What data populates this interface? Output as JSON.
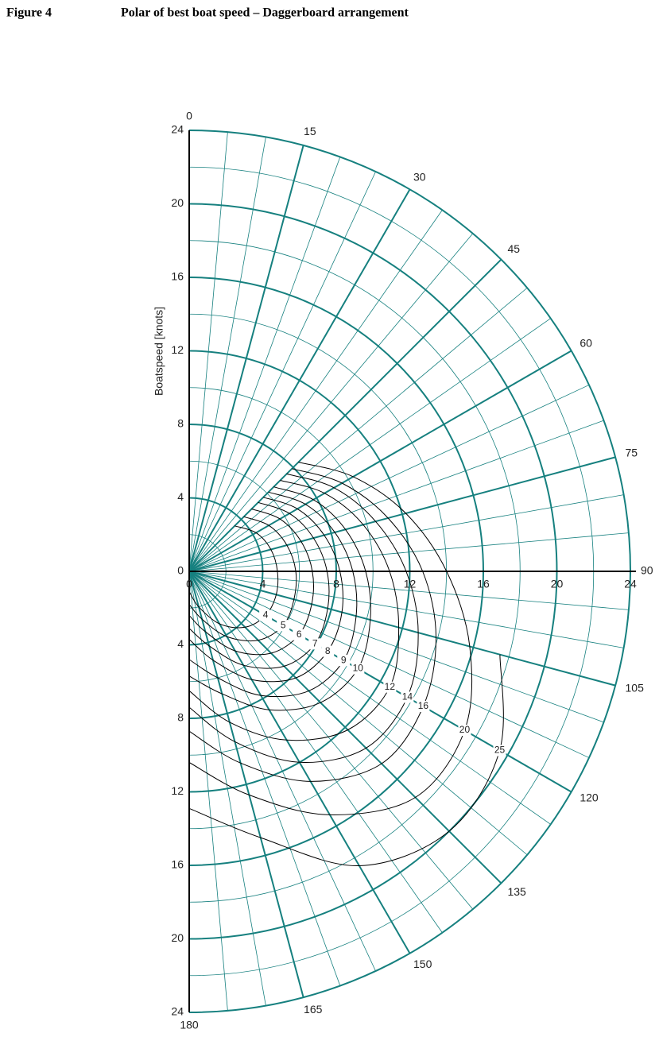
{
  "chart_data": {
    "type": "polar",
    "figure_label": "Figure 4",
    "title": "Polar of best boat speed – Daggerboard arrangement",
    "r_label": "Boatspeed [knots]",
    "rlim": [
      0,
      24
    ],
    "rticks": [
      0,
      4,
      8,
      12,
      16,
      20,
      24
    ],
    "thetalim": [
      0,
      180
    ],
    "angle_ticks": [
      0,
      15,
      30,
      45,
      60,
      75,
      90,
      105,
      120,
      135,
      150,
      165,
      180
    ],
    "grid": true,
    "grid_color": "#16807f",
    "x": [
      45,
      60,
      75,
      90,
      105,
      120,
      135,
      150,
      165,
      180
    ],
    "series": [
      {
        "name": "4",
        "color": "#000000",
        "values": [
          3.5,
          4.2,
          4.6,
          4.8,
          4.9,
          4.8,
          4.3,
          3.3,
          2.0,
          1.1
        ]
      },
      {
        "name": "5",
        "color": "#000000",
        "values": [
          4.2,
          5.0,
          5.5,
          5.8,
          5.9,
          5.9,
          5.3,
          4.1,
          2.7,
          1.8
        ]
      },
      {
        "name": "6",
        "color": "#000000",
        "values": [
          4.8,
          5.7,
          6.3,
          6.7,
          6.9,
          6.9,
          6.3,
          5.0,
          3.4,
          2.4
        ]
      },
      {
        "name": "7",
        "color": "#000000",
        "values": [
          5.3,
          6.3,
          7.0,
          7.5,
          7.8,
          7.9,
          7.3,
          5.9,
          4.2,
          3.1
        ]
      },
      {
        "name": "8",
        "color": "#000000",
        "values": [
          5.7,
          6.8,
          7.6,
          8.2,
          8.6,
          8.7,
          8.2,
          6.8,
          5.0,
          3.7
        ]
      },
      {
        "name": "9",
        "color": "#000000",
        "values": [
          6.1,
          7.3,
          8.2,
          8.9,
          9.4,
          9.7,
          9.2,
          7.8,
          6.0,
          4.8
        ]
      },
      {
        "name": "10",
        "color": "#000000",
        "values": [
          6.5,
          7.8,
          8.8,
          9.6,
          10.2,
          10.6,
          10.1,
          8.7,
          6.9,
          5.7
        ]
      },
      {
        "name": "12",
        "color": "#000000",
        "values": [
          7.0,
          8.5,
          9.8,
          10.9,
          11.8,
          12.6,
          12.2,
          10.6,
          8.5,
          6.5
        ]
      },
      {
        "name": "14",
        "color": "#000000",
        "values": [
          7.5,
          9.1,
          10.5,
          11.8,
          12.9,
          13.7,
          13.6,
          12.0,
          9.6,
          7.4
        ]
      },
      {
        "name": "16",
        "color": "#000000",
        "values": [
          7.9,
          9.6,
          11.2,
          12.7,
          13.9,
          14.7,
          14.8,
          13.2,
          10.8,
          8.7
        ]
      },
      {
        "name": "20",
        "color": "#000000",
        "values": [
          8.4,
          10.3,
          12.2,
          14.0,
          15.8,
          17.3,
          17.4,
          15.3,
          12.6,
          10.4
        ]
      },
      {
        "name": "25",
        "color": "#000000",
        "values": [
          null,
          null,
          null,
          null,
          17.5,
          19.5,
          20.0,
          18.5,
          15.0,
          12.9
        ]
      }
    ]
  }
}
